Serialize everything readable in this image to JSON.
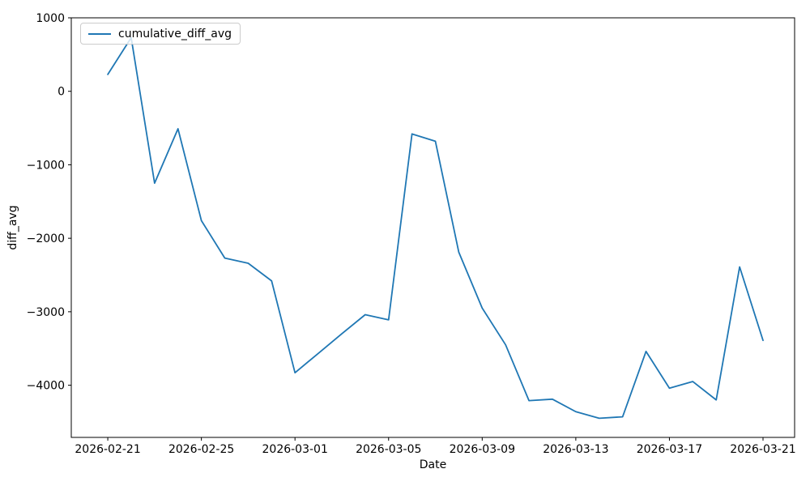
{
  "chart_data": {
    "type": "line",
    "title": "",
    "xlabel": "Date",
    "ylabel": "diff_avg",
    "grid": false,
    "legend_position": "upper left",
    "background_color": "#ffffff",
    "spine_color": "#000000",
    "legend_border_color": "#cccccc",
    "x": [
      "2026-02-21",
      "2026-02-22",
      "2026-02-23",
      "2026-02-24",
      "2026-02-25",
      "2026-02-26",
      "2026-02-27",
      "2026-02-28",
      "2026-03-01",
      "2026-03-02",
      "2026-03-03",
      "2026-03-04",
      "2026-03-05",
      "2026-03-06",
      "2026-03-07",
      "2026-03-08",
      "2026-03-09",
      "2026-03-10",
      "2026-03-11",
      "2026-03-12",
      "2026-03-13",
      "2026-03-14",
      "2026-03-15",
      "2026-03-16",
      "2026-03-17",
      "2026-03-18",
      "2026-03-19",
      "2026-03-20",
      "2026-03-21"
    ],
    "series": [
      {
        "name": "cumulative_diff_avg",
        "color": "#1f77b4",
        "values": [
          230,
          730,
          -1250,
          -510,
          -1760,
          -2270,
          -2340,
          -2580,
          -3830,
          -3565,
          -3300,
          -3040,
          -3110,
          -580,
          -680,
          -2190,
          -2950,
          -3450,
          -4210,
          -4190,
          -4360,
          -4450,
          -4430,
          -3540,
          -4040,
          -3950,
          -4200,
          -2390,
          -3390
        ]
      }
    ],
    "xlim_days": [
      -1.56,
      29.35
    ],
    "ylim": [
      -4710,
      1000
    ],
    "xticks": [
      {
        "day": 0,
        "label": "2026-02-21"
      },
      {
        "day": 4,
        "label": "2026-02-25"
      },
      {
        "day": 8,
        "label": "2026-03-01"
      },
      {
        "day": 12,
        "label": "2026-03-05"
      },
      {
        "day": 16,
        "label": "2026-03-09"
      },
      {
        "day": 20,
        "label": "2026-03-13"
      },
      {
        "day": 24,
        "label": "2026-03-17"
      },
      {
        "day": 28,
        "label": "2026-03-21"
      }
    ],
    "yticks": [
      {
        "value": 1000,
        "label": "1000"
      },
      {
        "value": 0,
        "label": "0"
      },
      {
        "value": -1000,
        "label": "−1000"
      },
      {
        "value": -2000,
        "label": "−2000"
      },
      {
        "value": -3000,
        "label": "−3000"
      },
      {
        "value": -4000,
        "label": "−4000"
      }
    ]
  }
}
